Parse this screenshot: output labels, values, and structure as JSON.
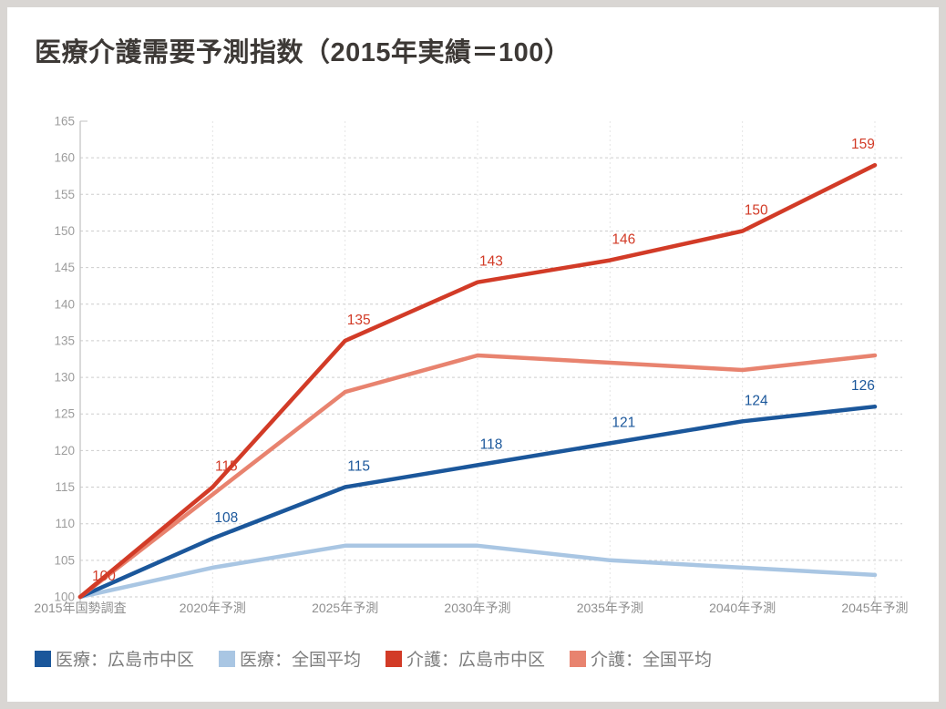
{
  "title": "医療介護需要予測指数（2015年実績＝100）",
  "chart_data": {
    "type": "line",
    "title": "医療介護需要予測指数（2015年実績＝100）",
    "categories": [
      "2015年国勢調査",
      "2020年予測",
      "2025年予測",
      "2030年予測",
      "2035年予測",
      "2040年予測",
      "2045年予測"
    ],
    "series": [
      {
        "name": "医療：広島市中区",
        "color": "#1B579B",
        "values": [
          100,
          108,
          115,
          118,
          121,
          124,
          126
        ],
        "point_labels": [
          null,
          108,
          115,
          118,
          121,
          124,
          126
        ]
      },
      {
        "name": "医療：全国平均",
        "color": "#A9C6E3",
        "values": [
          100,
          104,
          107,
          107,
          105,
          104,
          103
        ],
        "point_labels": [
          null,
          null,
          null,
          null,
          null,
          null,
          null
        ]
      },
      {
        "name": "介護：広島市中区",
        "color": "#D23B27",
        "values": [
          100,
          115,
          135,
          143,
          146,
          150,
          159
        ],
        "point_labels": [
          100,
          115,
          135,
          143,
          146,
          150,
          159
        ]
      },
      {
        "name": "介護：全国平均",
        "color": "#E8836F",
        "values": [
          100,
          114,
          128,
          133,
          132,
          131,
          133
        ],
        "point_labels": [
          null,
          null,
          null,
          null,
          null,
          null,
          null
        ]
      }
    ],
    "ylim": [
      100,
      165
    ],
    "ytick_step": 5,
    "y_tick_labels": [
      100,
      105,
      110,
      115,
      120,
      125,
      130,
      135,
      140,
      145,
      150,
      155,
      160,
      165
    ],
    "grid": "horizontal dashed gridlines every 5 units, faint vertical dashed gridlines at each year tick",
    "legend_position": "bottom-left"
  },
  "palette": {
    "frame_background": "#d9d6d3",
    "card_background": "#ffffff",
    "title_text": "#3d3936",
    "grid_line": "#cdcdcd",
    "vertical_grid_line": "#e4e4e4",
    "axis_line": "#c2c2c2",
    "axis_tick": "#b5b5b5",
    "y_axis_label_text": "#9c9c9c",
    "x_axis_label_text": "#8f8f8f",
    "legend_text": "#7d7d7d"
  }
}
